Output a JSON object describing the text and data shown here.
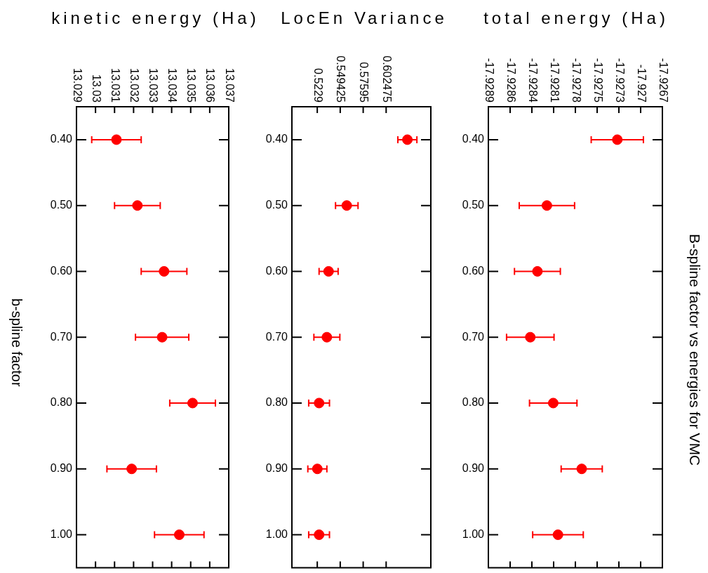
{
  "chart_data": [
    {
      "type": "scatter",
      "orientation": "horizontal",
      "xlabel": "kinetic energy (Ha)",
      "ylabel": "b-spline factor",
      "categories": [
        "0.40",
        "0.50",
        "0.60",
        "0.70",
        "0.80",
        "0.90",
        "1.00"
      ],
      "color": "#ff0000",
      "marker": "circle",
      "values": [
        13.0311,
        13.0322,
        13.0336,
        13.0335,
        13.0351,
        13.0319,
        13.0344
      ],
      "errors": [
        0.0013,
        0.0012,
        0.0012,
        0.0014,
        0.0012,
        0.0013,
        0.0013
      ],
      "xlim": [
        13.029,
        13.037
      ],
      "xticks": [
        13.029,
        13.03,
        13.031,
        13.032,
        13.033,
        13.034,
        13.035,
        13.036,
        13.037
      ]
    },
    {
      "type": "scatter",
      "orientation": "horizontal",
      "xlabel": "LocEn Variance",
      "categories": [
        "0.40",
        "0.50",
        "0.60",
        "0.70",
        "0.80",
        "0.90",
        "1.00"
      ],
      "color": "#ff0000",
      "marker": "circle",
      "values": [
        0.627,
        0.557,
        0.536,
        0.534,
        0.525,
        0.523,
        0.525
      ],
      "errors": [
        0.011,
        0.013,
        0.011,
        0.015,
        0.012,
        0.011,
        0.012
      ],
      "xlim": [
        0.4936,
        0.6541
      ],
      "xticks": [
        0.5229,
        0.549425,
        0.57595,
        0.602475
      ]
    },
    {
      "type": "scatter",
      "orientation": "horizontal",
      "annotations": [
        "B-spline factor vs energies for VMC"
      ],
      "xlabel": "total energy (Ha)",
      "categories": [
        "0.40",
        "0.50",
        "0.60",
        "0.70",
        "0.80",
        "0.90",
        "1.00"
      ],
      "color": "#ff0000",
      "marker": "circle",
      "values": [
        -17.92727,
        -17.92816,
        -17.92828,
        -17.92837,
        -17.92808,
        -17.92772,
        -17.92802
      ],
      "errors": [
        0.00033,
        0.00035,
        0.00029,
        0.0003,
        0.0003,
        0.00026,
        0.00032
      ],
      "xlim": [
        -17.9289,
        -17.9267
      ],
      "xticks": [
        {
          "value": -17.9289,
          "label": "-17.9289"
        },
        {
          "value": -17.928625,
          "label": "-17.9286"
        },
        {
          "value": -17.92835,
          "label": "-17.9284"
        },
        {
          "value": -17.928075,
          "label": "-17.9281"
        },
        {
          "value": -17.9278,
          "label": "-17.9278"
        },
        {
          "value": -17.927525,
          "label": "-17.9275"
        },
        {
          "value": -17.92725,
          "label": "-17.9273"
        },
        {
          "value": -17.926975,
          "label": "-17.927"
        },
        {
          "value": -17.9267,
          "label": "-17.9267"
        }
      ]
    }
  ]
}
